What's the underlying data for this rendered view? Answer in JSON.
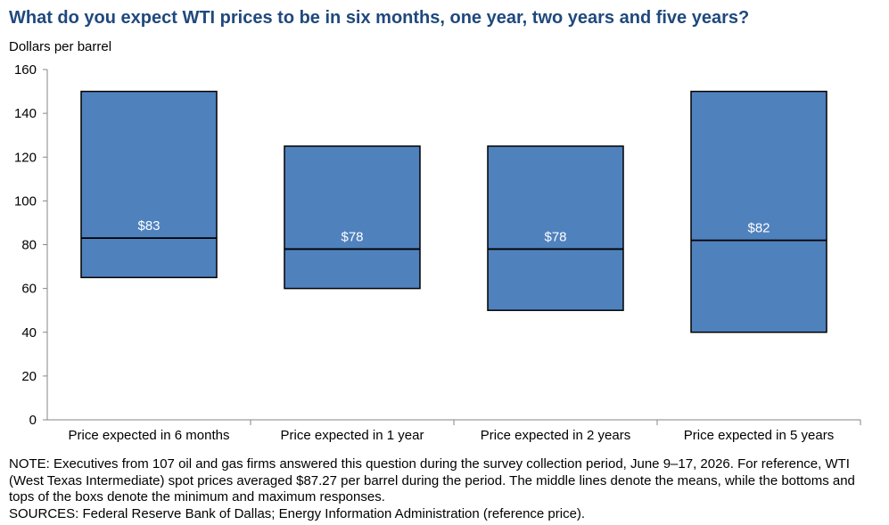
{
  "chart_data": {
    "type": "box",
    "title": "What do you expect WTI prices to be in six months, one year, two years and five years?",
    "ylabel": "Dollars  per barrel",
    "ylim": [
      0,
      160
    ],
    "yticks": [
      0,
      20,
      40,
      60,
      80,
      100,
      120,
      140,
      160
    ],
    "categories": [
      "Price expected in 6 months",
      "Price expected in 1 year",
      "Price expected in 2 years",
      "Price expected in 5 years"
    ],
    "min": [
      65,
      60,
      50,
      40
    ],
    "max": [
      150,
      125,
      125,
      150
    ],
    "mean": [
      83,
      78,
      78,
      82
    ],
    "mean_labels": [
      "$83",
      "$78",
      "$78",
      "$82"
    ],
    "box_color": "#4f81bd"
  },
  "notes": {
    "note": "NOTE:  Executives  from 107 oil and gas firms answered this question during the survey collection period, June 9–17, 2026. For reference, WTI (West Texas  Intermediate) spot prices averaged $87.27 per barrel during the period. The middle lines denote the means, while the bottoms and tops of the boxs denote the minimum and maximum  responses.",
    "sources": "SOURCES:  Federal Reserve Bank of Dallas; Energy Information Administration  (reference price)."
  }
}
